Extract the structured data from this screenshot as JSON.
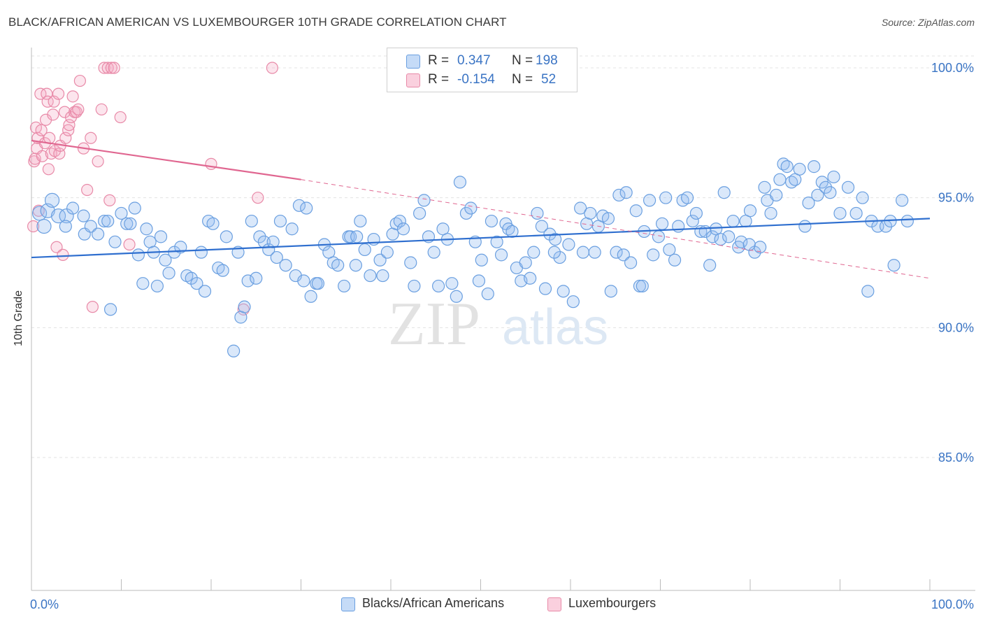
{
  "title": "BLACK/AFRICAN AMERICAN VS LUXEMBOURGER 10TH GRADE CORRELATION CHART",
  "source": "Source: ZipAtlas.com",
  "colors": {
    "blue": "#6a9fe0",
    "blue_fill": "rgba(150,190,240,0.35)",
    "blue_line": "#2f6fcf",
    "pink": "#e88aa8",
    "pink_fill": "rgba(245,170,195,0.30)",
    "pink_line": "#e06690",
    "axis_text": "#3a74c4",
    "grid": "#e3e3e3"
  },
  "legend": {
    "rows": [
      {
        "r_label": "R =",
        "r_value": "0.347",
        "n_label": "N =",
        "n_value": "198"
      },
      {
        "r_label": "R =",
        "r_value": "-0.154",
        "n_label": "N =",
        "n_value": "52"
      }
    ]
  },
  "bottom_legend": [
    "Blacks/African Americans",
    "Luxembourgers"
  ],
  "watermark": {
    "zip": "ZIP",
    "atlas": "atlas"
  },
  "chart_data": {
    "type": "scatter",
    "title": "BLACK/AFRICAN AMERICAN VS LUXEMBOURGER 10TH GRADE CORRELATION CHART",
    "xlabel": "",
    "ylabel": "10th Grade",
    "xlim": [
      0,
      100
    ],
    "ylim": [
      80.3,
      100.6
    ],
    "x_tick_labels": [
      "0.0%",
      "100.0%"
    ],
    "y_tick_labels": [
      "100.0%",
      "95.0%",
      "90.0%",
      "85.0%"
    ],
    "y_ticks": [
      100,
      95,
      90,
      85
    ],
    "grid": true,
    "legend_position": "top-center",
    "series": [
      {
        "name": "Blacks/African Americans",
        "R": 0.347,
        "N": 198,
        "trend": {
          "x": [
            0,
            100
          ],
          "y": [
            92.7,
            94.2
          ]
        },
        "points": [
          [
            0.9,
            94.4
          ],
          [
            1.4,
            93.9
          ],
          [
            1.8,
            94.5
          ],
          [
            2.3,
            94.9
          ],
          [
            3.0,
            94.3
          ],
          [
            3.9,
            94.3
          ],
          [
            3.8,
            93.9
          ],
          [
            4.6,
            94.6
          ],
          [
            5.8,
            94.3
          ],
          [
            5.9,
            93.6
          ],
          [
            6.6,
            93.9
          ],
          [
            7.4,
            93.6
          ],
          [
            8.1,
            94.1
          ],
          [
            8.5,
            94.1
          ],
          [
            8.8,
            90.7
          ],
          [
            9.3,
            93.3
          ],
          [
            10.0,
            94.4
          ],
          [
            10.6,
            94.0
          ],
          [
            11.0,
            94.0
          ],
          [
            11.5,
            94.6
          ],
          [
            11.9,
            92.8
          ],
          [
            12.4,
            91.7
          ],
          [
            12.8,
            93.8
          ],
          [
            13.2,
            93.3
          ],
          [
            13.6,
            92.9
          ],
          [
            14.0,
            91.6
          ],
          [
            14.4,
            93.5
          ],
          [
            14.9,
            92.6
          ],
          [
            15.3,
            92.1
          ],
          [
            15.9,
            92.9
          ],
          [
            16.6,
            93.1
          ],
          [
            17.3,
            92.0
          ],
          [
            17.8,
            91.9
          ],
          [
            18.4,
            91.7
          ],
          [
            18.9,
            92.9
          ],
          [
            19.3,
            91.4
          ],
          [
            19.7,
            94.1
          ],
          [
            20.2,
            94.0
          ],
          [
            20.8,
            92.3
          ],
          [
            21.3,
            92.2
          ],
          [
            21.7,
            93.5
          ],
          [
            22.5,
            89.1
          ],
          [
            23.0,
            92.9
          ],
          [
            23.3,
            90.4
          ],
          [
            23.7,
            90.8
          ],
          [
            24.1,
            91.8
          ],
          [
            24.5,
            94.1
          ],
          [
            25.0,
            91.9
          ],
          [
            25.4,
            93.5
          ],
          [
            25.9,
            93.3
          ],
          [
            26.4,
            93.0
          ],
          [
            26.9,
            93.3
          ],
          [
            27.3,
            92.7
          ],
          [
            27.7,
            94.1
          ],
          [
            28.3,
            92.4
          ],
          [
            29.0,
            93.8
          ],
          [
            29.4,
            92.0
          ],
          [
            29.8,
            94.7
          ],
          [
            30.3,
            91.8
          ],
          [
            31.1,
            91.2
          ],
          [
            31.7,
            91.7
          ],
          [
            31.9,
            91.7
          ],
          [
            32.6,
            93.2
          ],
          [
            33.1,
            92.9
          ],
          [
            33.6,
            92.5
          ],
          [
            34.1,
            92.4
          ],
          [
            34.8,
            91.6
          ],
          [
            35.3,
            93.5
          ],
          [
            35.5,
            93.5
          ],
          [
            36.1,
            92.4
          ],
          [
            36.6,
            94.1
          ],
          [
            37.1,
            93.0
          ],
          [
            37.7,
            92.0
          ],
          [
            38.1,
            93.4
          ],
          [
            38.8,
            92.6
          ],
          [
            39.1,
            92.0
          ],
          [
            39.6,
            92.9
          ],
          [
            40.2,
            93.6
          ],
          [
            40.6,
            94.0
          ],
          [
            41.0,
            94.1
          ],
          [
            41.4,
            93.8
          ],
          [
            42.2,
            92.5
          ],
          [
            42.6,
            91.6
          ],
          [
            43.2,
            94.4
          ],
          [
            43.7,
            94.9
          ],
          [
            44.2,
            93.5
          ],
          [
            44.8,
            92.9
          ],
          [
            45.3,
            91.6
          ],
          [
            45.8,
            93.8
          ],
          [
            46.3,
            93.4
          ],
          [
            46.8,
            91.7
          ],
          [
            47.3,
            91.2
          ],
          [
            47.7,
            95.6
          ],
          [
            48.4,
            94.4
          ],
          [
            48.9,
            94.6
          ],
          [
            49.4,
            93.3
          ],
          [
            49.8,
            91.8
          ],
          [
            50.1,
            92.6
          ],
          [
            50.8,
            91.3
          ],
          [
            51.2,
            94.1
          ],
          [
            51.8,
            93.3
          ],
          [
            52.3,
            92.8
          ],
          [
            52.8,
            94.0
          ],
          [
            53.1,
            93.8
          ],
          [
            53.5,
            93.7
          ],
          [
            54.0,
            92.3
          ],
          [
            54.5,
            91.8
          ],
          [
            55.0,
            92.5
          ],
          [
            55.5,
            91.9
          ],
          [
            55.9,
            92.9
          ],
          [
            56.3,
            94.4
          ],
          [
            56.8,
            93.9
          ],
          [
            57.2,
            91.5
          ],
          [
            57.7,
            93.6
          ],
          [
            58.3,
            93.4
          ],
          [
            58.8,
            92.7
          ],
          [
            59.2,
            91.4
          ],
          [
            59.8,
            93.2
          ],
          [
            60.3,
            91.0
          ],
          [
            61.1,
            94.6
          ],
          [
            61.4,
            92.9
          ],
          [
            61.8,
            94.0
          ],
          [
            62.2,
            94.4
          ],
          [
            62.7,
            92.9
          ],
          [
            63.1,
            93.9
          ],
          [
            63.6,
            94.3
          ],
          [
            64.2,
            94.2
          ],
          [
            64.5,
            91.4
          ],
          [
            65.1,
            92.9
          ],
          [
            65.4,
            95.1
          ],
          [
            65.9,
            92.8
          ],
          [
            66.2,
            95.2
          ],
          [
            66.7,
            92.5
          ],
          [
            67.3,
            94.5
          ],
          [
            67.7,
            91.6
          ],
          [
            68.2,
            93.7
          ],
          [
            68.8,
            94.9
          ],
          [
            69.2,
            92.8
          ],
          [
            69.8,
            93.5
          ],
          [
            70.2,
            94.0
          ],
          [
            70.6,
            95.0
          ],
          [
            71.0,
            93.0
          ],
          [
            71.6,
            92.6
          ],
          [
            72.0,
            93.9
          ],
          [
            72.5,
            94.9
          ],
          [
            73.0,
            95.0
          ],
          [
            73.6,
            94.1
          ],
          [
            74.0,
            94.4
          ],
          [
            74.5,
            93.7
          ],
          [
            75.0,
            93.7
          ],
          [
            75.5,
            92.4
          ],
          [
            75.8,
            93.5
          ],
          [
            76.2,
            93.8
          ],
          [
            76.7,
            93.4
          ],
          [
            77.1,
            95.2
          ],
          [
            77.6,
            93.5
          ],
          [
            78.1,
            94.1
          ],
          [
            78.7,
            93.1
          ],
          [
            79.0,
            93.3
          ],
          [
            79.5,
            94.1
          ],
          [
            80.0,
            94.5
          ],
          [
            80.5,
            92.9
          ],
          [
            81.1,
            93.1
          ],
          [
            81.6,
            95.4
          ],
          [
            81.9,
            94.9
          ],
          [
            82.3,
            94.4
          ],
          [
            82.9,
            95.1
          ],
          [
            83.3,
            95.7
          ],
          [
            83.7,
            96.3
          ],
          [
            84.1,
            96.2
          ],
          [
            84.6,
            95.6
          ],
          [
            85.0,
            95.7
          ],
          [
            85.5,
            96.1
          ],
          [
            86.1,
            93.9
          ],
          [
            86.5,
            94.8
          ],
          [
            87.1,
            96.2
          ],
          [
            87.5,
            95.1
          ],
          [
            88.0,
            95.6
          ],
          [
            88.4,
            95.4
          ],
          [
            88.9,
            95.2
          ],
          [
            89.3,
            95.8
          ],
          [
            90.0,
            94.4
          ],
          [
            90.9,
            95.4
          ],
          [
            91.8,
            94.4
          ],
          [
            92.5,
            95.0
          ],
          [
            93.1,
            91.4
          ],
          [
            93.5,
            94.1
          ],
          [
            94.2,
            93.9
          ],
          [
            95.1,
            93.9
          ],
          [
            96.0,
            92.4
          ],
          [
            96.9,
            94.9
          ],
          [
            97.5,
            94.1
          ],
          [
            95.6,
            94.1
          ],
          [
            79.9,
            93.2
          ],
          [
            68.0,
            91.6
          ],
          [
            30.6,
            94.6
          ],
          [
            58.2,
            92.9
          ],
          [
            36.2,
            93.5
          ]
        ]
      },
      {
        "name": "Luxembourgers",
        "R": -0.154,
        "N": 52,
        "trend": {
          "x": [
            0,
            30
          ],
          "y": [
            97.2,
            95.7
          ]
        },
        "trend_extension": {
          "x": [
            30,
            100
          ],
          "y": [
            95.7,
            91.9
          ]
        },
        "points": [
          [
            0.2,
            93.9
          ],
          [
            0.3,
            96.4
          ],
          [
            0.4,
            96.5
          ],
          [
            0.5,
            97.7
          ],
          [
            0.6,
            96.9
          ],
          [
            0.7,
            97.3
          ],
          [
            0.8,
            94.5
          ],
          [
            1.0,
            99.0
          ],
          [
            1.1,
            97.6
          ],
          [
            1.2,
            96.6
          ],
          [
            1.5,
            97.1
          ],
          [
            1.6,
            98.0
          ],
          [
            1.7,
            99.0
          ],
          [
            1.8,
            98.7
          ],
          [
            1.9,
            96.1
          ],
          [
            2.0,
            97.3
          ],
          [
            2.2,
            96.7
          ],
          [
            2.4,
            98.2
          ],
          [
            2.5,
            98.7
          ],
          [
            2.6,
            96.8
          ],
          [
            2.8,
            93.1
          ],
          [
            3.0,
            99.0
          ],
          [
            3.1,
            96.7
          ],
          [
            3.2,
            97.0
          ],
          [
            3.5,
            92.8
          ],
          [
            3.7,
            98.3
          ],
          [
            3.8,
            97.3
          ],
          [
            4.1,
            97.6
          ],
          [
            4.2,
            97.8
          ],
          [
            4.4,
            98.1
          ],
          [
            4.6,
            98.9
          ],
          [
            4.8,
            98.3
          ],
          [
            5.0,
            98.3
          ],
          [
            5.2,
            98.4
          ],
          [
            5.4,
            99.5
          ],
          [
            5.8,
            96.9
          ],
          [
            6.2,
            95.3
          ],
          [
            6.6,
            97.3
          ],
          [
            6.8,
            90.8
          ],
          [
            7.4,
            96.4
          ],
          [
            7.8,
            98.4
          ],
          [
            8.1,
            100.0
          ],
          [
            8.5,
            100.0
          ],
          [
            8.7,
            94.9
          ],
          [
            8.9,
            100.0
          ],
          [
            9.2,
            100.0
          ],
          [
            9.9,
            98.1
          ],
          [
            10.9,
            93.2
          ],
          [
            20.0,
            96.3
          ],
          [
            23.6,
            90.7
          ],
          [
            25.2,
            95.0
          ],
          [
            26.8,
            100.0
          ]
        ]
      }
    ]
  }
}
